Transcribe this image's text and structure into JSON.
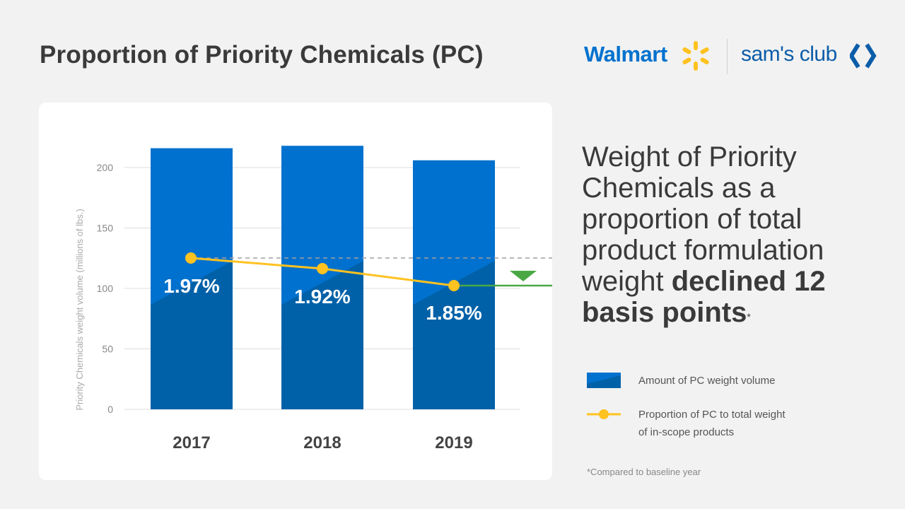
{
  "title": "Proportion of Priority Chemicals (PC)",
  "logos": {
    "walmart": "Walmart",
    "sams_club": "sam's club",
    "walmart_color": "#0071ce",
    "spark_color": "#ffc220",
    "sams_color": "#0b5da9"
  },
  "headline": {
    "prefix": "Weight of Priority Chemicals as a proportion of total product formulation weight ",
    "emphasis": "declined 12 basis points",
    "marker": "*"
  },
  "legend": {
    "bar_label": "Amount of PC weight volume",
    "line_label_1": "Proportion of PC to total weight",
    "line_label_2": "of in-scope products"
  },
  "footnote": "*Compared to baseline year",
  "colors": {
    "bar_light": "#0071ce",
    "bar_dark": "#0061a8",
    "line": "#ffc220",
    "decline": "#4aa844",
    "grid": "#dcdcdc",
    "baseline_dash": "#a0a0a0"
  },
  "chart_data": {
    "type": "bar",
    "categories": [
      "2017",
      "2018",
      "2019"
    ],
    "series": [
      {
        "name": "Amount of PC weight volume",
        "type": "bar",
        "values": [
          216,
          218,
          206
        ]
      },
      {
        "name": "Proportion of PC to total weight of in-scope products",
        "type": "line",
        "values": [
          1.97,
          1.92,
          1.85
        ],
        "labels": [
          "1.97%",
          "1.92%",
          "1.85%"
        ]
      }
    ],
    "ylabel": "Priority Chemicals weight volume (millions of lbs.)",
    "ylim": [
      0,
      200
    ],
    "yticks": [
      0,
      50,
      100,
      150,
      200
    ],
    "grid": true,
    "annotation": "baseline reference line at 2017 proportion with decline marker"
  }
}
